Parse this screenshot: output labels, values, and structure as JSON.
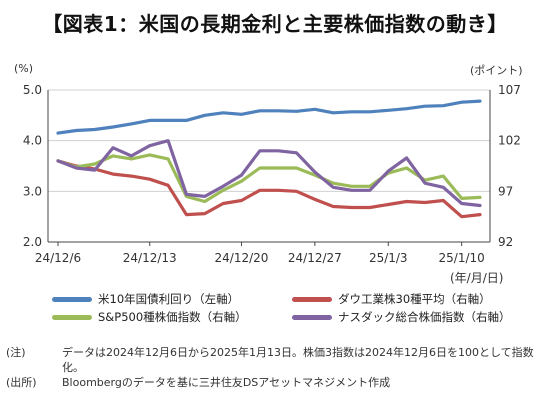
{
  "title": "【図表1：米国の長期金利と主要株価指数の動き】",
  "left_unit": "(%)",
  "right_unit": "(ポイント)",
  "x_unit": "(年/月/日)",
  "notes": [
    {
      "head": "(注)",
      "body": "データは2024年12月6日から2025年1月13日。株価3指数は2024年12月6日を100として指数化。"
    },
    {
      "head": "(出所)",
      "body": "Bloombergのデータを基に三井住友DSアセットマネジメント作成"
    }
  ],
  "chart_data": {
    "type": "line",
    "x": [
      "24/12/6",
      "24/12/9",
      "24/12/10",
      "24/12/11",
      "24/12/12",
      "24/12/13",
      "24/12/16",
      "24/12/17",
      "24/12/18",
      "24/12/19",
      "24/12/20",
      "24/12/23",
      "24/12/24",
      "24/12/26",
      "24/12/27",
      "24/12/30",
      "24/12/31",
      "25/1/2",
      "25/1/3",
      "25/1/6",
      "25/1/7",
      "25/1/8",
      "25/1/10",
      "25/1/13"
    ],
    "xticks": [
      "24/12/6",
      "24/12/13",
      "24/12/20",
      "24/12/27",
      "25/1/3",
      "25/1/10"
    ],
    "y_left": {
      "ylim": [
        2.0,
        5.0
      ],
      "ticks": [
        "2.0",
        "3.0",
        "4.0",
        "5.0"
      ]
    },
    "y_right": {
      "ylim": [
        92,
        107
      ],
      "ticks": [
        "92",
        "97",
        "102",
        "107"
      ]
    },
    "grid": true,
    "series": [
      {
        "name": "米10年国債利回り（左軸）",
        "axis": "left",
        "color": "#4f81bd",
        "values": [
          4.15,
          4.2,
          4.22,
          4.27,
          4.33,
          4.4,
          4.4,
          4.4,
          4.5,
          4.55,
          4.52,
          4.59,
          4.59,
          4.58,
          4.62,
          4.55,
          4.57,
          4.57,
          4.6,
          4.63,
          4.68,
          4.69,
          4.76,
          4.78
        ]
      },
      {
        "name": "ダウ工業株30種平均（右軸）",
        "axis": "right",
        "color": "#c0504d",
        "values": [
          100.0,
          99.5,
          99.2,
          98.7,
          98.5,
          98.2,
          97.6,
          94.7,
          94.8,
          95.8,
          96.1,
          97.1,
          97.1,
          97.0,
          96.2,
          95.5,
          95.4,
          95.4,
          95.7,
          96.0,
          95.9,
          96.1,
          94.5,
          94.7
        ]
      },
      {
        "name": "S&P500種株価指数（右軸）",
        "axis": "right",
        "color": "#9bbb59",
        "values": [
          100.0,
          99.4,
          99.7,
          100.5,
          100.2,
          100.6,
          100.2,
          96.5,
          96.0,
          97.1,
          98.0,
          99.3,
          99.3,
          99.3,
          98.6,
          97.8,
          97.5,
          97.5,
          98.8,
          99.3,
          98.1,
          98.5,
          96.3,
          96.4
        ]
      },
      {
        "name": "ナスダック総合株価指数（右軸）",
        "axis": "right",
        "color": "#8064a2",
        "values": [
          100.0,
          99.3,
          99.1,
          101.3,
          100.5,
          101.5,
          102.0,
          96.7,
          96.5,
          97.5,
          98.6,
          101.0,
          101.0,
          100.8,
          98.9,
          97.4,
          97.1,
          97.1,
          99.0,
          100.3,
          97.8,
          97.4,
          95.8,
          95.6
        ]
      }
    ]
  }
}
